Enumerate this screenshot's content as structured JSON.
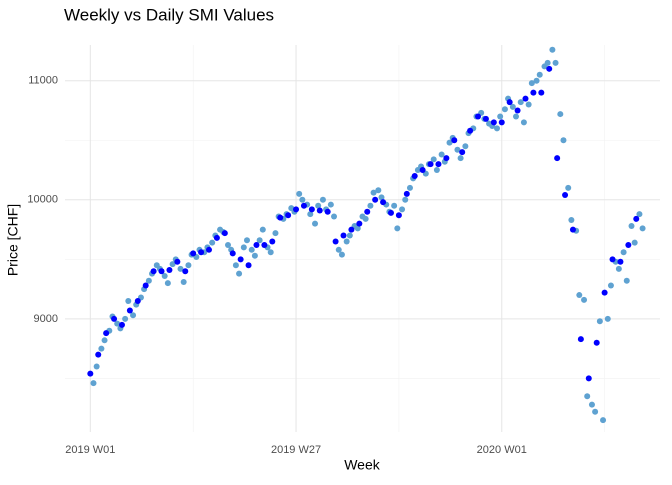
{
  "chart_data": {
    "type": "scatter",
    "title": "Weekly vs Daily SMI Values",
    "x_label": "Week",
    "y_label": "Price [CHF]",
    "xlim": [
      -3.2,
      72
    ],
    "ylim": [
      8050,
      11300
    ],
    "xticks": [
      {
        "value": 0,
        "label": "2019 W01"
      },
      {
        "value": 26,
        "label": "2019 W27"
      },
      {
        "value": 52,
        "label": "2020 W01"
      }
    ],
    "xminor": [
      13,
      39,
      65
    ],
    "yticks": [
      9000,
      10000,
      11000
    ],
    "yminor": [
      8500,
      9500,
      10500
    ],
    "grid": true,
    "series": [
      {
        "color": "#5fa2d1",
        "x": [
          0.4,
          0.8,
          1.4,
          1.8,
          2.4,
          2.8,
          3.4,
          3.8,
          4.4,
          4.8,
          5.4,
          5.8,
          6.4,
          6.8,
          7.4,
          7.8,
          8.4,
          8.8,
          9.4,
          9.8,
          10.4,
          10.8,
          11.4,
          11.8,
          12.4,
          12.8,
          13.4,
          13.8,
          14.4,
          14.8,
          15.4,
          15.8,
          16.4,
          16.8,
          17.4,
          17.8,
          18.4,
          18.8,
          19.4,
          19.8,
          20.4,
          20.8,
          21.4,
          21.8,
          22.4,
          22.8,
          23.4,
          23.8,
          24.4,
          24.8,
          25.4,
          25.8,
          26.4,
          26.8,
          27.4,
          27.8,
          28.4,
          28.8,
          29.4,
          29.8,
          30.4,
          30.8,
          31.4,
          31.8,
          32.4,
          32.8,
          33.4,
          33.8,
          34.4,
          34.8,
          35.4,
          35.8,
          36.4,
          36.8,
          37.4,
          37.8,
          38.4,
          38.8,
          39.4,
          39.8,
          40.4,
          40.8,
          41.4,
          41.8,
          42.4,
          42.8,
          43.4,
          43.8,
          44.4,
          44.8,
          45.4,
          45.8,
          46.4,
          46.8,
          47.4,
          47.8,
          48.4,
          48.8,
          49.4,
          49.8,
          50.4,
          50.8,
          51.4,
          51.8,
          52.4,
          52.8,
          53.4,
          53.8,
          54.4,
          54.8,
          55.4,
          55.8,
          56.4,
          56.8,
          57.4,
          57.8,
          58.4,
          58.8,
          59.4,
          59.8,
          60.4,
          60.8,
          61.4,
          61.8,
          62.4,
          62.8,
          63.4,
          63.8,
          64.4,
          64.8,
          65.4,
          65.8,
          66.4,
          66.8,
          67.4,
          67.8,
          68.4,
          68.8,
          69.4,
          69.8
        ],
        "values": [
          8460,
          8600,
          8750,
          8820,
          8900,
          9020,
          8960,
          8920,
          9000,
          9150,
          9030,
          9120,
          9180,
          9250,
          9320,
          9380,
          9450,
          9420,
          9360,
          9300,
          9460,
          9500,
          9420,
          9310,
          9450,
          9540,
          9520,
          9580,
          9560,
          9600,
          9640,
          9700,
          9750,
          9730,
          9620,
          9580,
          9450,
          9380,
          9600,
          9660,
          9580,
          9530,
          9660,
          9750,
          9600,
          9560,
          9720,
          9860,
          9840,
          9880,
          9930,
          9900,
          10050,
          10000,
          9960,
          9880,
          9800,
          9950,
          10000,
          9920,
          9960,
          9860,
          9580,
          9540,
          9650,
          9700,
          9780,
          9760,
          9860,
          9840,
          9950,
          10060,
          10080,
          10020,
          9960,
          9900,
          9950,
          9760,
          9920,
          10000,
          10100,
          10180,
          10250,
          10280,
          10220,
          10300,
          10340,
          10250,
          10380,
          10320,
          10480,
          10520,
          10420,
          10350,
          10450,
          10560,
          10600,
          10700,
          10730,
          10680,
          10640,
          10620,
          10600,
          10700,
          10760,
          10850,
          10780,
          10700,
          10820,
          10650,
          10800,
          10980,
          11000,
          11050,
          11120,
          11150,
          11260,
          11150,
          10720,
          10500,
          10100,
          9830,
          9740,
          9200,
          9160,
          8350,
          8280,
          8220,
          8980,
          8150,
          9000,
          9280,
          9480,
          9420,
          9560,
          9320,
          9780,
          9640,
          9880,
          9760
        ]
      },
      {
        "color": "#0000ff",
        "x": [
          0,
          1,
          2,
          3,
          4,
          5,
          6,
          7,
          8,
          9,
          10,
          11,
          12,
          13,
          14,
          15,
          16,
          17,
          18,
          19,
          20,
          21,
          22,
          23,
          24,
          25,
          26,
          27,
          28,
          29,
          30,
          31,
          32,
          33,
          34,
          35,
          36,
          37,
          38,
          39,
          40,
          41,
          42,
          43,
          44,
          45,
          46,
          47,
          48,
          49,
          50,
          51,
          52,
          53,
          54,
          55,
          56,
          57,
          58,
          59,
          60,
          61,
          62,
          63,
          64,
          65,
          66,
          67,
          68,
          69
        ],
        "values": [
          8540,
          8700,
          8880,
          9000,
          8950,
          9070,
          9150,
          9280,
          9400,
          9400,
          9410,
          9480,
          9400,
          9550,
          9560,
          9580,
          9680,
          9720,
          9550,
          9500,
          9450,
          9620,
          9620,
          9650,
          9850,
          9870,
          9920,
          9950,
          9920,
          9910,
          9900,
          9650,
          9700,
          9750,
          9800,
          9900,
          10000,
          9980,
          9890,
          9870,
          10050,
          10200,
          10250,
          10300,
          10300,
          10350,
          10500,
          10400,
          10580,
          10700,
          10680,
          10650,
          10650,
          10820,
          10750,
          10850,
          10900,
          10900,
          11100,
          10350,
          10040,
          9750,
          8830,
          8500,
          8800,
          9220,
          9500,
          9480,
          9620,
          9840
        ]
      }
    ]
  }
}
